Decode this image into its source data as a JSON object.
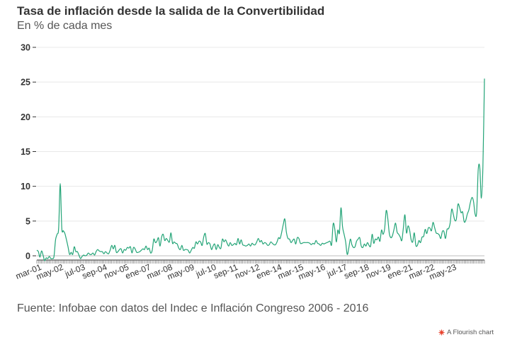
{
  "chart_data": {
    "type": "line",
    "title": "Tasa de inflación desde la salida de la Convertibilidad",
    "subtitle": "En % de cada mes",
    "xlabel": "",
    "ylabel": "",
    "ylim": [
      0,
      30
    ],
    "yticks": [
      0,
      5,
      10,
      15,
      20,
      25,
      30
    ],
    "grid": true,
    "legend": "none",
    "line_color": "#23a477",
    "x_tick_labels": [
      "mar-01",
      "may-02",
      "jul-03",
      "sep-04",
      "nov-05",
      "ene-07",
      "mar-08",
      "may-09",
      "jul-10",
      "sep-11",
      "nov-12",
      "ene-14",
      "mar-15",
      "may-16",
      "jul-17",
      "sep-18",
      "nov-19",
      "ene-21",
      "mar-22",
      "may-23"
    ],
    "series_start": "2001-01",
    "series": [
      {
        "values": [
          0.8,
          0.6,
          -0.2,
          0.7,
          0.1,
          -0.7,
          -0.3,
          -0.4,
          -0.1,
          -0.4,
          -0.4,
          -0.1,
          2.3,
          3.1,
          4.0,
          10.4,
          4.0,
          3.6,
          3.2,
          2.3,
          1.3,
          0.2,
          0.5,
          0.2,
          1.3,
          0.6,
          0.6,
          0.1,
          -0.4,
          -0.1,
          0.1,
          0.0,
          0.1,
          0.4,
          0.2,
          0.2,
          0.4,
          0.1,
          0.6,
          0.9,
          0.7,
          0.6,
          0.6,
          0.3,
          0.6,
          0.4,
          0.3,
          0.8,
          1.5,
          1.0,
          1.5,
          0.5,
          0.6,
          0.9,
          1.0,
          0.4,
          0.9,
          0.8,
          1.2,
          1.1,
          1.3,
          0.4,
          1.2,
          1.0,
          0.5,
          0.5,
          0.6,
          0.8,
          1.0,
          0.9,
          1.4,
          0.9,
          1.1,
          0.4,
          0.8,
          2.4,
          1.9,
          2.1,
          2.6,
          1.4,
          2.7,
          3.1,
          2.2,
          2.5,
          2.2,
          2.0,
          3.3,
          1.8,
          2.0,
          1.8,
          1.7,
          1.1,
          0.9,
          1.5,
          0.8,
          0.9,
          0.9,
          0.8,
          0.4,
          0.8,
          1.2,
          1.1,
          2.0,
          1.7,
          2.1,
          2.0,
          1.5,
          2.7,
          3.2,
          1.7,
          1.9,
          1.7,
          0.9,
          1.4,
          1.7,
          0.9,
          1.6,
          1.2,
          1.1,
          2.4,
          2.0,
          2.3,
          1.8,
          1.4,
          1.9,
          1.5,
          1.6,
          1.8,
          1.6,
          2.5,
          1.7,
          2.3,
          1.6,
          1.5,
          1.4,
          1.5,
          1.7,
          1.4,
          1.8,
          1.6,
          1.6,
          2.0,
          2.5,
          2.0,
          2.2,
          1.7,
          1.9,
          1.8,
          1.5,
          1.6,
          2.0,
          1.8,
          1.6,
          1.6,
          2.0,
          2.6,
          2.5,
          3.4,
          4.5,
          5.3,
          3.4,
          2.5,
          2.4,
          1.9,
          2.2,
          2.4,
          1.7,
          2.6,
          2.5,
          1.8,
          1.8,
          1.9,
          1.9,
          1.9,
          1.9,
          1.8,
          1.6,
          1.8,
          1.7,
          2.2,
          1.8,
          1.7,
          1.5,
          1.8,
          1.7,
          1.8,
          1.9,
          2.0,
          2.1,
          1.6,
          4.6,
          3.9,
          2.0,
          3.7,
          3.3,
          6.9,
          4.2,
          3.1,
          2.0,
          0.2,
          1.1,
          2.4,
          1.6,
          1.2,
          1.3,
          2.1,
          2.4,
          2.6,
          1.4,
          1.2,
          1.7,
          1.4,
          1.9,
          1.5,
          1.4,
          3.1,
          1.8,
          2.4,
          2.3,
          2.7,
          2.1,
          3.7,
          3.1,
          3.9,
          6.5,
          5.4,
          3.2,
          2.6,
          2.9,
          3.8,
          4.7,
          3.4,
          3.1,
          2.7,
          2.2,
          4.0,
          5.9,
          3.3,
          4.3,
          3.7,
          2.3,
          2.0,
          3.3,
          1.5,
          1.5,
          2.2,
          1.9,
          2.7,
          2.8,
          3.8,
          3.2,
          4.0,
          4.0,
          3.6,
          4.8,
          4.1,
          3.3,
          3.2,
          3.0,
          2.5,
          3.5,
          3.5,
          2.5,
          3.8,
          3.9,
          4.7,
          6.7,
          6.0,
          5.1,
          5.3,
          7.4,
          7.0,
          6.2,
          6.3,
          4.9,
          5.1,
          6.0,
          6.6,
          7.7,
          8.4,
          7.8,
          6.0,
          6.3,
          12.4,
          12.7,
          8.3,
          12.8,
          25.5
        ]
      }
    ]
  },
  "source": "Fuente: Infobae con datos del Indec e Inflación Congreso 2006 - 2016",
  "brand": "A Flourish chart"
}
